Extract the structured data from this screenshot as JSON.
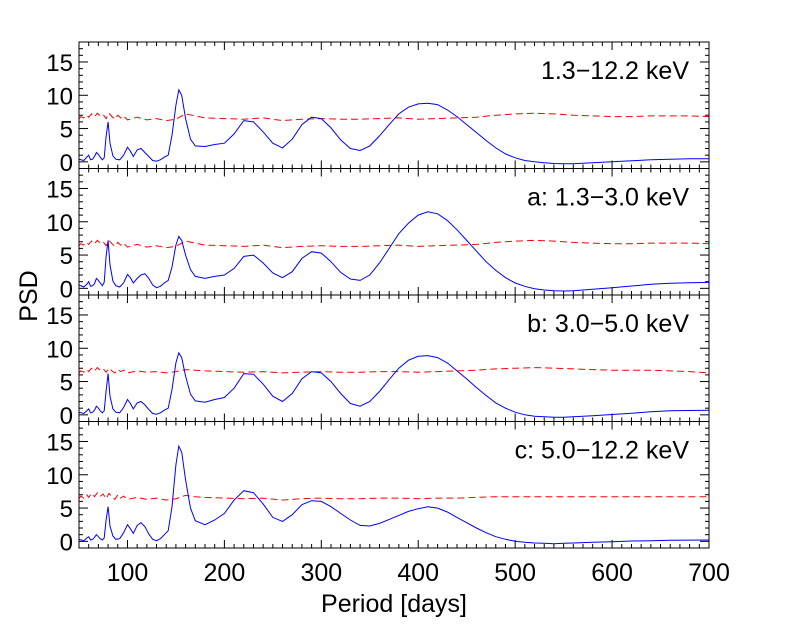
{
  "chart_data": {
    "type": "line",
    "xlabel": "Period [days]",
    "ylabel": "PSD",
    "xlim": [
      50,
      700
    ],
    "ylim": [
      -1,
      18
    ],
    "xticks": [
      100,
      200,
      300,
      400,
      500,
      600,
      700
    ],
    "yticks": [
      0,
      5,
      10,
      15
    ],
    "series_styles": {
      "psd": {
        "color": "#0000ff",
        "dash": "solid"
      },
      "significance": {
        "color": "#ff0000",
        "dash": "dashed"
      }
    },
    "panels": [
      {
        "label": "1.3−12.2 keV",
        "psd": {
          "x": [
            50,
            55,
            58,
            60,
            62,
            64,
            66,
            68,
            70,
            72,
            74,
            76,
            78,
            80,
            82,
            85,
            88,
            92,
            96,
            100,
            103,
            106,
            110,
            114,
            118,
            122,
            126,
            130,
            134,
            138,
            142,
            146,
            150,
            153,
            156,
            160,
            165,
            170,
            180,
            190,
            200,
            210,
            220,
            230,
            240,
            250,
            260,
            270,
            280,
            290,
            300,
            310,
            320,
            330,
            340,
            350,
            360,
            370,
            380,
            390,
            400,
            410,
            420,
            430,
            440,
            450,
            460,
            470,
            480,
            490,
            500,
            510,
            520,
            530,
            540,
            550,
            560,
            580,
            600,
            620,
            640,
            660,
            680,
            700
          ],
          "y": [
            0.4,
            0.2,
            0.7,
            1.0,
            0.3,
            0.4,
            0.8,
            1.4,
            1.1,
            0.7,
            0.3,
            0.6,
            3.8,
            6.0,
            2.8,
            0.9,
            0.4,
            0.3,
            1.0,
            2.2,
            1.6,
            0.8,
            1.8,
            2.0,
            1.4,
            0.8,
            0.2,
            0.1,
            0.3,
            0.7,
            1.0,
            4.0,
            8.5,
            10.8,
            10.0,
            6.5,
            3.4,
            2.4,
            2.3,
            2.6,
            2.8,
            4.2,
            6.2,
            6.0,
            4.5,
            2.8,
            2.1,
            3.4,
            5.6,
            6.7,
            6.5,
            5.1,
            3.3,
            2.0,
            1.7,
            2.4,
            3.9,
            5.6,
            7.2,
            8.2,
            8.7,
            8.8,
            8.6,
            7.8,
            6.8,
            5.6,
            4.4,
            3.2,
            2.1,
            1.2,
            0.6,
            0.2,
            0.0,
            -0.15,
            -0.25,
            -0.3,
            -0.28,
            -0.15,
            0.0,
            0.15,
            0.3,
            0.4,
            0.45,
            0.45
          ]
        },
        "significance": {
          "x": [
            50,
            52,
            55,
            58,
            60,
            63,
            66,
            69,
            72,
            75,
            78,
            81,
            84,
            87,
            90,
            93,
            96,
            100,
            110,
            120,
            130,
            140,
            150,
            160,
            170,
            180,
            200,
            220,
            240,
            260,
            280,
            300,
            320,
            340,
            360,
            380,
            400,
            420,
            440,
            460,
            480,
            500,
            520,
            540,
            560,
            580,
            600,
            620,
            640,
            660,
            680,
            700
          ],
          "y": [
            6.5,
            6.8,
            6.6,
            7.0,
            6.7,
            7.2,
            6.8,
            7.3,
            6.9,
            7.1,
            6.5,
            7.3,
            6.8,
            6.4,
            7.0,
            6.6,
            6.9,
            6.3,
            6.7,
            6.3,
            6.5,
            6.2,
            6.4,
            7.2,
            6.9,
            6.6,
            6.5,
            6.4,
            6.6,
            6.2,
            6.4,
            6.5,
            6.4,
            6.4,
            6.5,
            6.6,
            6.4,
            6.5,
            6.6,
            6.7,
            7.0,
            7.2,
            7.3,
            7.2,
            7.0,
            6.9,
            6.8,
            6.8,
            6.9,
            6.9,
            6.9,
            6.8
          ]
        }
      },
      {
        "label": "a: 1.3−3.0 keV",
        "psd": {
          "x": [
            50,
            55,
            58,
            60,
            62,
            64,
            66,
            68,
            70,
            72,
            74,
            76,
            78,
            80,
            82,
            85,
            88,
            92,
            96,
            100,
            103,
            106,
            110,
            114,
            118,
            122,
            126,
            130,
            134,
            138,
            142,
            146,
            150,
            153,
            156,
            160,
            165,
            170,
            180,
            190,
            200,
            210,
            220,
            230,
            240,
            250,
            260,
            270,
            280,
            290,
            300,
            310,
            320,
            330,
            340,
            350,
            360,
            370,
            380,
            390,
            400,
            410,
            420,
            430,
            440,
            450,
            460,
            470,
            480,
            490,
            500,
            510,
            520,
            530,
            540,
            550,
            560,
            580,
            600,
            620,
            640,
            660,
            680,
            700
          ],
          "y": [
            0.5,
            0.2,
            0.6,
            1.0,
            0.3,
            0.4,
            0.7,
            1.5,
            1.2,
            0.8,
            0.4,
            0.9,
            4.8,
            7.2,
            3.5,
            1.1,
            0.4,
            0.2,
            0.8,
            2.1,
            1.6,
            0.8,
            1.5,
            2.0,
            2.2,
            1.5,
            0.5,
            0.1,
            0.3,
            0.8,
            1.2,
            3.2,
            6.5,
            7.8,
            7.2,
            5.0,
            2.8,
            1.8,
            1.5,
            1.8,
            2.0,
            3.0,
            4.8,
            5.0,
            3.8,
            2.3,
            1.6,
            2.5,
            4.5,
            5.5,
            5.3,
            4.0,
            2.4,
            1.4,
            1.2,
            2.0,
            3.8,
            6.0,
            8.2,
            9.8,
            11.0,
            11.5,
            11.2,
            10.2,
            8.8,
            7.2,
            5.6,
            4.0,
            2.7,
            1.6,
            0.8,
            0.3,
            -0.05,
            -0.25,
            -0.35,
            -0.4,
            -0.35,
            -0.15,
            0.1,
            0.35,
            0.6,
            0.75,
            0.85,
            0.9
          ]
        },
        "significance": {
          "x": [
            50,
            52,
            55,
            58,
            60,
            63,
            66,
            69,
            72,
            75,
            78,
            81,
            84,
            87,
            90,
            93,
            96,
            100,
            110,
            120,
            130,
            140,
            150,
            160,
            170,
            180,
            200,
            220,
            240,
            260,
            280,
            300,
            320,
            340,
            360,
            380,
            400,
            420,
            440,
            460,
            480,
            500,
            520,
            540,
            560,
            580,
            600,
            620,
            640,
            660,
            680,
            700
          ],
          "y": [
            6.4,
            6.7,
            6.5,
            6.9,
            6.6,
            7.1,
            6.7,
            7.2,
            6.8,
            7.0,
            6.4,
            7.2,
            6.7,
            6.3,
            6.9,
            6.5,
            6.8,
            6.2,
            6.6,
            6.2,
            6.4,
            6.1,
            6.3,
            7.1,
            6.8,
            6.5,
            6.4,
            6.3,
            6.5,
            6.1,
            6.3,
            6.4,
            6.3,
            6.3,
            6.4,
            6.5,
            6.3,
            6.4,
            6.5,
            6.6,
            6.9,
            7.1,
            7.2,
            7.1,
            6.9,
            6.8,
            6.7,
            6.7,
            6.8,
            6.8,
            6.8,
            6.7
          ]
        }
      },
      {
        "label": "b: 3.0−5.0 keV",
        "psd": {
          "x": [
            50,
            55,
            58,
            60,
            62,
            64,
            66,
            68,
            70,
            72,
            74,
            76,
            78,
            80,
            82,
            85,
            88,
            92,
            96,
            100,
            103,
            106,
            110,
            114,
            118,
            122,
            126,
            130,
            134,
            138,
            142,
            146,
            150,
            153,
            156,
            160,
            165,
            170,
            180,
            190,
            200,
            210,
            220,
            230,
            240,
            250,
            260,
            270,
            280,
            290,
            300,
            310,
            320,
            330,
            340,
            350,
            360,
            370,
            380,
            390,
            400,
            410,
            420,
            430,
            440,
            450,
            460,
            470,
            480,
            490,
            500,
            510,
            520,
            530,
            540,
            550,
            560,
            580,
            600,
            620,
            640,
            660,
            680,
            700
          ],
          "y": [
            0.4,
            0.2,
            0.6,
            0.9,
            0.3,
            0.4,
            0.7,
            1.3,
            1.0,
            0.6,
            0.3,
            0.6,
            3.6,
            6.2,
            2.8,
            0.9,
            0.4,
            0.3,
            1.1,
            2.3,
            1.7,
            0.9,
            1.8,
            2.0,
            1.5,
            0.8,
            0.2,
            0.1,
            0.3,
            0.7,
            1.0,
            3.8,
            7.8,
            9.3,
            8.6,
            5.8,
            3.1,
            2.1,
            1.9,
            2.3,
            2.6,
            4.0,
            6.2,
            6.1,
            4.6,
            2.8,
            2.0,
            3.2,
            5.4,
            6.5,
            6.3,
            5.0,
            3.2,
            1.7,
            1.3,
            2.0,
            3.5,
            5.3,
            7.0,
            8.2,
            8.8,
            8.9,
            8.6,
            7.8,
            6.6,
            5.4,
            4.1,
            2.9,
            1.8,
            1.0,
            0.4,
            0.0,
            -0.2,
            -0.3,
            -0.35,
            -0.35,
            -0.3,
            -0.15,
            0.05,
            0.25,
            0.45,
            0.6,
            0.65,
            0.7
          ]
        },
        "significance": {
          "x": [
            50,
            52,
            55,
            58,
            60,
            63,
            66,
            69,
            72,
            75,
            78,
            81,
            84,
            87,
            90,
            93,
            96,
            100,
            110,
            120,
            130,
            140,
            150,
            160,
            170,
            180,
            200,
            220,
            240,
            260,
            280,
            300,
            320,
            340,
            360,
            380,
            400,
            420,
            440,
            460,
            480,
            500,
            520,
            540,
            560,
            580,
            600,
            620,
            640,
            660,
            680,
            700
          ],
          "y": [
            6.3,
            6.6,
            6.4,
            6.8,
            6.5,
            7.0,
            6.6,
            7.1,
            6.7,
            6.9,
            6.4,
            7.0,
            6.6,
            6.3,
            6.8,
            6.5,
            6.7,
            6.3,
            6.6,
            6.4,
            6.5,
            6.3,
            6.5,
            6.8,
            6.7,
            6.6,
            6.5,
            6.4,
            6.5,
            6.3,
            6.4,
            6.5,
            6.4,
            6.4,
            6.5,
            6.5,
            6.4,
            6.5,
            6.6,
            6.7,
            6.9,
            7.0,
            7.1,
            7.0,
            6.9,
            6.8,
            6.7,
            6.7,
            6.7,
            6.6,
            6.5,
            6.3
          ]
        }
      },
      {
        "label": "c: 5.0−12.2 keV",
        "psd": {
          "x": [
            50,
            55,
            58,
            60,
            62,
            64,
            66,
            68,
            70,
            72,
            74,
            76,
            78,
            80,
            82,
            85,
            88,
            92,
            96,
            100,
            103,
            106,
            110,
            114,
            118,
            122,
            126,
            130,
            134,
            138,
            142,
            146,
            150,
            153,
            156,
            160,
            165,
            170,
            180,
            190,
            200,
            210,
            220,
            230,
            240,
            250,
            260,
            270,
            280,
            290,
            300,
            310,
            320,
            330,
            340,
            350,
            360,
            370,
            380,
            390,
            400,
            410,
            420,
            430,
            440,
            450,
            460,
            470,
            480,
            490,
            500,
            510,
            520,
            530,
            540,
            550,
            560,
            580,
            600,
            620,
            640,
            660,
            680,
            700
          ],
          "y": [
            0.3,
            0.1,
            0.5,
            0.7,
            0.2,
            0.3,
            0.6,
            1.0,
            0.7,
            0.4,
            0.2,
            0.5,
            3.2,
            5.2,
            2.3,
            0.8,
            0.3,
            0.4,
            1.3,
            2.5,
            1.9,
            1.2,
            2.4,
            2.8,
            2.2,
            1.1,
            0.3,
            0.1,
            0.4,
            1.0,
            1.6,
            5.2,
            11.5,
            14.3,
            13.4,
            9.2,
            5.0,
            3.1,
            2.5,
            3.2,
            4.2,
            6.2,
            7.6,
            7.3,
            5.6,
            3.6,
            3.0,
            4.0,
            5.5,
            6.1,
            6.0,
            5.2,
            4.2,
            3.2,
            2.4,
            2.3,
            2.7,
            3.3,
            3.9,
            4.5,
            4.9,
            5.2,
            5.0,
            4.4,
            3.6,
            2.8,
            2.0,
            1.3,
            0.7,
            0.3,
            0.0,
            -0.15,
            -0.25,
            -0.3,
            -0.35,
            -0.3,
            -0.25,
            -0.15,
            -0.05,
            0.05,
            0.1,
            0.15,
            0.18,
            0.2
          ]
        },
        "significance": {
          "x": [
            50,
            52,
            55,
            58,
            60,
            63,
            66,
            69,
            72,
            75,
            78,
            81,
            84,
            87,
            90,
            93,
            96,
            100,
            110,
            120,
            130,
            140,
            150,
            160,
            170,
            180,
            200,
            220,
            240,
            260,
            280,
            300,
            320,
            340,
            360,
            380,
            400,
            420,
            440,
            460,
            480,
            500,
            520,
            540,
            560,
            580,
            600,
            620,
            640,
            660,
            680,
            700
          ],
          "y": [
            6.4,
            6.8,
            6.5,
            7.0,
            6.6,
            7.2,
            6.7,
            7.3,
            6.8,
            7.1,
            6.4,
            7.2,
            6.7,
            6.3,
            7.0,
            6.5,
            6.8,
            6.3,
            6.6,
            6.3,
            6.5,
            6.2,
            6.4,
            6.9,
            6.7,
            6.6,
            6.5,
            6.4,
            6.5,
            6.2,
            6.4,
            6.5,
            6.4,
            6.4,
            6.5,
            6.5,
            6.4,
            6.5,
            6.5,
            6.6,
            6.7,
            6.7,
            6.7,
            6.7,
            6.7,
            6.7,
            6.7,
            6.7,
            6.7,
            6.7,
            6.7,
            6.7
          ]
        }
      }
    ]
  }
}
